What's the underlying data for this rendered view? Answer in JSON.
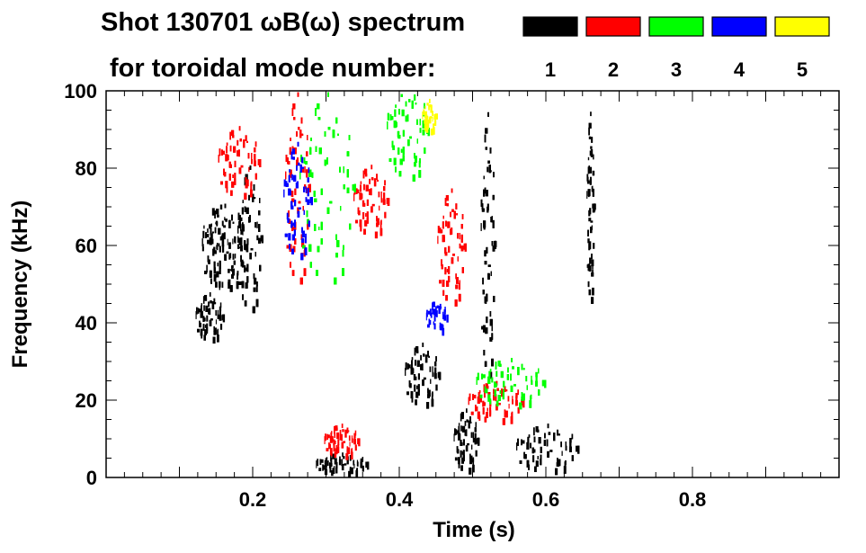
{
  "chart_data": {
    "type": "heatmap",
    "title_line1": "Shot 130701 ωB(ω) spectrum",
    "title_line2": "for toroidal mode number:",
    "xlabel": "Time (s)",
    "ylabel": "Frequency (kHz)",
    "xlim": [
      0.0,
      1.0
    ],
    "ylim": [
      0,
      100
    ],
    "x_ticks": [
      "0.2",
      "0.4",
      "0.6",
      "0.8"
    ],
    "y_ticks": [
      "0",
      "20",
      "40",
      "60",
      "80",
      "100"
    ],
    "legend": [
      {
        "label": "1",
        "color": "#000000"
      },
      {
        "label": "2",
        "color": "#ff0000"
      },
      {
        "label": "3",
        "color": "#00ff00"
      },
      {
        "label": "4",
        "color": "#0000ff"
      },
      {
        "label": "5",
        "color": "#ffff00"
      }
    ],
    "series": [
      {
        "name": "1",
        "color": "#000000",
        "blobs": [
          {
            "t": 0.16,
            "f": 60,
            "dt": 0.065,
            "df": 22
          },
          {
            "t": 0.195,
            "f": 62,
            "dt": 0.035,
            "df": 38
          },
          {
            "t": 0.14,
            "f": 42,
            "dt": 0.04,
            "df": 12
          },
          {
            "t": 0.32,
            "f": 4,
            "dt": 0.075,
            "df": 5
          },
          {
            "t": 0.43,
            "f": 27,
            "dt": 0.05,
            "df": 16
          },
          {
            "t": 0.49,
            "f": 10,
            "dt": 0.035,
            "df": 16
          },
          {
            "t": 0.6,
            "f": 8,
            "dt": 0.09,
            "df": 12
          },
          {
            "t": 0.52,
            "f": 60,
            "dt": 0.02,
            "df": 70
          },
          {
            "t": 0.66,
            "f": 70,
            "dt": 0.01,
            "df": 50
          }
        ]
      },
      {
        "name": "2",
        "color": "#ff0000",
        "blobs": [
          {
            "t": 0.18,
            "f": 82,
            "dt": 0.06,
            "df": 18
          },
          {
            "t": 0.26,
            "f": 75,
            "dt": 0.035,
            "df": 50
          },
          {
            "t": 0.36,
            "f": 72,
            "dt": 0.05,
            "df": 18
          },
          {
            "t": 0.47,
            "f": 60,
            "dt": 0.04,
            "df": 30
          },
          {
            "t": 0.53,
            "f": 20,
            "dt": 0.08,
            "df": 10
          },
          {
            "t": 0.32,
            "f": 10,
            "dt": 0.05,
            "df": 8
          }
        ]
      },
      {
        "name": "3",
        "color": "#00ff00",
        "blobs": [
          {
            "t": 0.3,
            "f": 75,
            "dt": 0.08,
            "df": 50
          },
          {
            "t": 0.41,
            "f": 90,
            "dt": 0.06,
            "df": 25
          },
          {
            "t": 0.55,
            "f": 25,
            "dt": 0.1,
            "df": 12
          }
        ]
      },
      {
        "name": "4",
        "color": "#0000ff",
        "blobs": [
          {
            "t": 0.26,
            "f": 72,
            "dt": 0.04,
            "df": 30
          },
          {
            "t": 0.45,
            "f": 42,
            "dt": 0.03,
            "df": 8
          }
        ]
      },
      {
        "name": "5",
        "color": "#ffff00",
        "blobs": [
          {
            "t": 0.44,
            "f": 94,
            "dt": 0.02,
            "df": 8
          }
        ]
      }
    ]
  }
}
